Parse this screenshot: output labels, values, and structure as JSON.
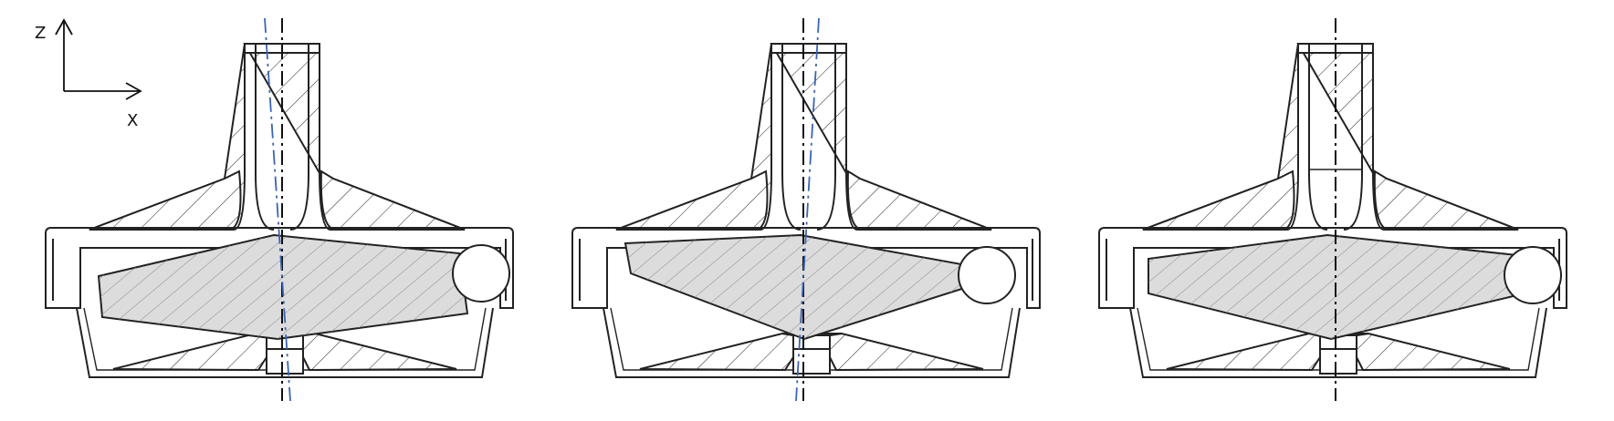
{
  "axes": {
    "z_label": "Z",
    "x_label": "X"
  },
  "colors": {
    "line": "#222222",
    "rotor_fill": "#dcdcdc",
    "tilt_axis": "#3a64b4"
  },
  "panels": [
    {
      "id": "left",
      "rotor_tilt": "tilted",
      "tilt_axis_shown": true
    },
    {
      "id": "middle",
      "rotor_tilt": "tilted",
      "tilt_axis_shown": true
    },
    {
      "id": "right",
      "rotor_tilt": "level",
      "tilt_axis_shown": false
    }
  ]
}
